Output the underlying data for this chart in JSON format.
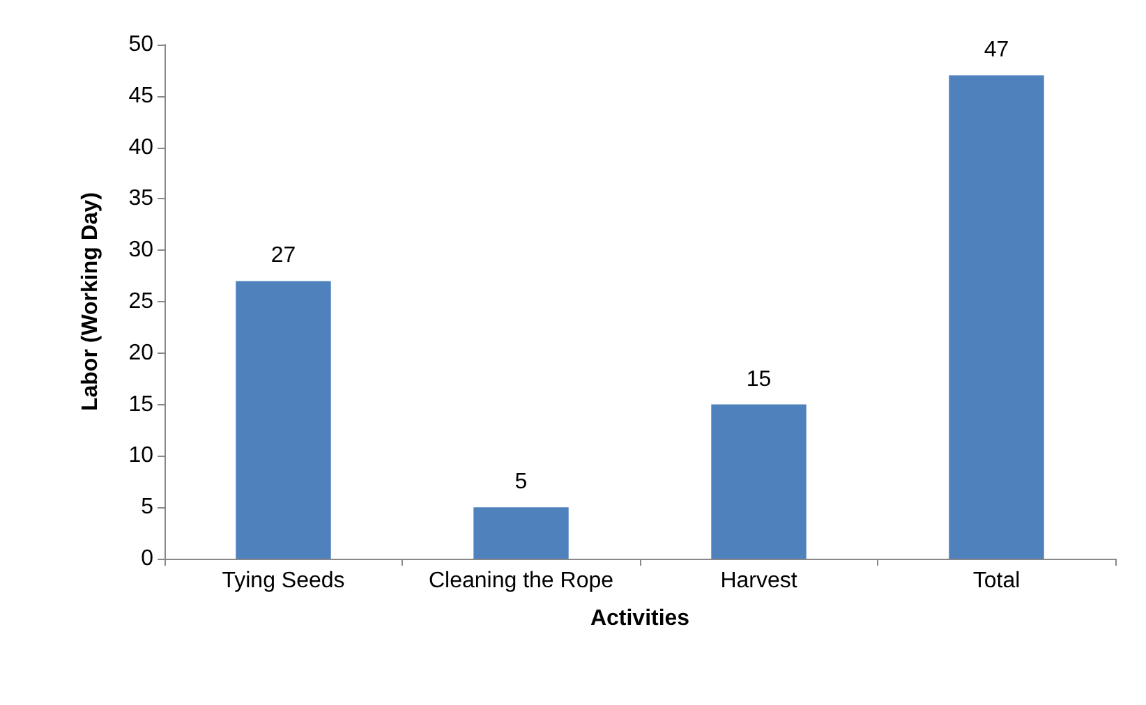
{
  "chart_data": {
    "type": "bar",
    "xlabel": "Activities",
    "ylabel": "Labor (Working Day)",
    "categories": [
      "Tying Seeds",
      "Cleaning the Rope",
      "Harvest",
      "Total"
    ],
    "values": [
      27,
      5,
      15,
      47
    ],
    "color": "#4f81bd",
    "ylim": [
      0,
      50
    ],
    "yticks": [
      0,
      5,
      10,
      15,
      20,
      25,
      30,
      35,
      40,
      45,
      50
    ],
    "grid": false,
    "data_labels": true
  }
}
